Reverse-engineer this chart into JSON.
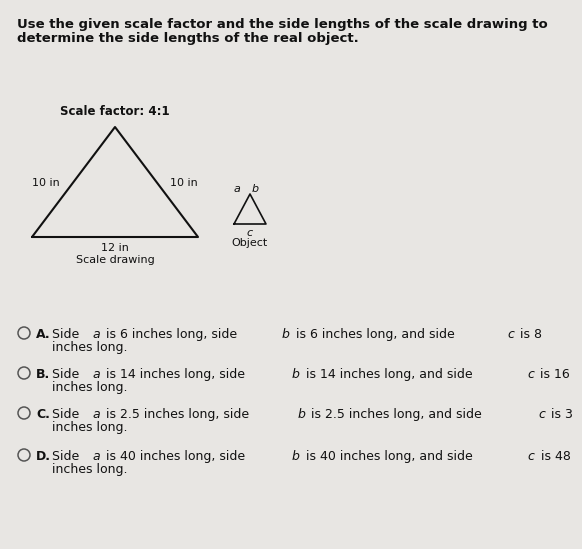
{
  "title_line1": "Use the given scale factor and the side lengths of the scale drawing to",
  "title_line2": "determine the side lengths of the real object.",
  "scale_factor_label": "Scale factor: 4:1",
  "scale_drawing_label": "Scale drawing",
  "object_label": "Object",
  "large_tri_left": "10 in",
  "large_tri_right": "10 in",
  "large_tri_bottom": "12 in",
  "choice_letters": [
    "A",
    "B",
    "C",
    "D"
  ],
  "choice_line1": [
    "Side a is 6 inches long, side b is 6 inches long, and side c is 8",
    "Side a is 14 inches long, side b is 14 inches long, and side c is 16",
    "Side a is 2.5 inches long, side b is 2.5 inches long, and side c is 3",
    "Side a is 40 inches long, side b is 40 inches long, and side c is 48"
  ],
  "choice_line2": [
    "inches long.",
    "inches long.",
    "inches long.",
    "inches long."
  ],
  "bg_color": "#e8e6e3",
  "text_color": "#111111",
  "title_fontsize": 9.5,
  "choice_fontsize": 9.0,
  "label_fontsize": 8.0
}
